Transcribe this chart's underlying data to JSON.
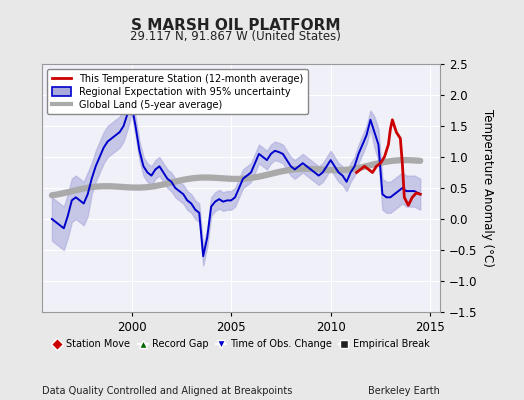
{
  "title": "S MARSH OIL PLATFORM",
  "subtitle": "29.117 N, 91.867 W (United States)",
  "ylabel": "Temperature Anomaly (°C)",
  "xlabel_left": "Data Quality Controlled and Aligned at Breakpoints",
  "xlabel_right": "Berkeley Earth",
  "xlim": [
    1995.5,
    2015.5
  ],
  "ylim": [
    -1.5,
    2.5
  ],
  "yticks": [
    -1.5,
    -1.0,
    -0.5,
    0.0,
    0.5,
    1.0,
    1.5,
    2.0,
    2.5
  ],
  "xticks": [
    2000,
    2005,
    2010,
    2015
  ],
  "bg_color": "#e8e8e8",
  "plot_bg_color": "#f0f0f8",
  "grid_color": "#ffffff",
  "blue_line_color": "#0000cc",
  "blue_fill_color": "#aaaadd",
  "red_line_color": "#cc0000",
  "gray_line_color": "#aaaaaa",
  "legend1_labels": [
    "This Temperature Station (12-month average)",
    "Regional Expectation with 95% uncertainty",
    "Global Land (5-year average)"
  ],
  "legend2_labels": [
    "Station Move",
    "Record Gap",
    "Time of Obs. Change",
    "Empirical Break"
  ]
}
